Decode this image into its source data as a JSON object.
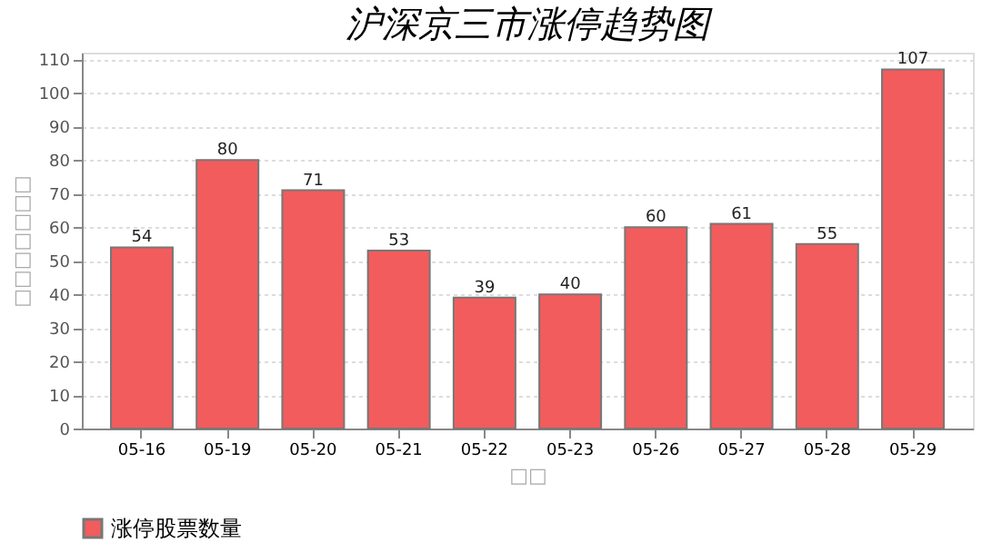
{
  "chart_data": {
    "type": "bar",
    "title": "沪深京三市涨停趋势图",
    "xlabel": "□□",
    "ylabel": "□□□□□□□",
    "categories": [
      "05-16",
      "05-19",
      "05-20",
      "05-21",
      "05-22",
      "05-23",
      "05-26",
      "05-27",
      "05-28",
      "05-29"
    ],
    "series": [
      {
        "name": "涨停股票数量",
        "color": "#f25c5c",
        "values": [
          54,
          80,
          71,
          53,
          39,
          40,
          60,
          61,
          55,
          107
        ]
      }
    ],
    "ylim": [
      0,
      112
    ],
    "yticks": [
      0,
      10,
      20,
      30,
      40,
      50,
      60,
      70,
      80,
      90,
      100,
      110
    ],
    "grid": "y",
    "legend": "bottom",
    "data_labels": true
  }
}
